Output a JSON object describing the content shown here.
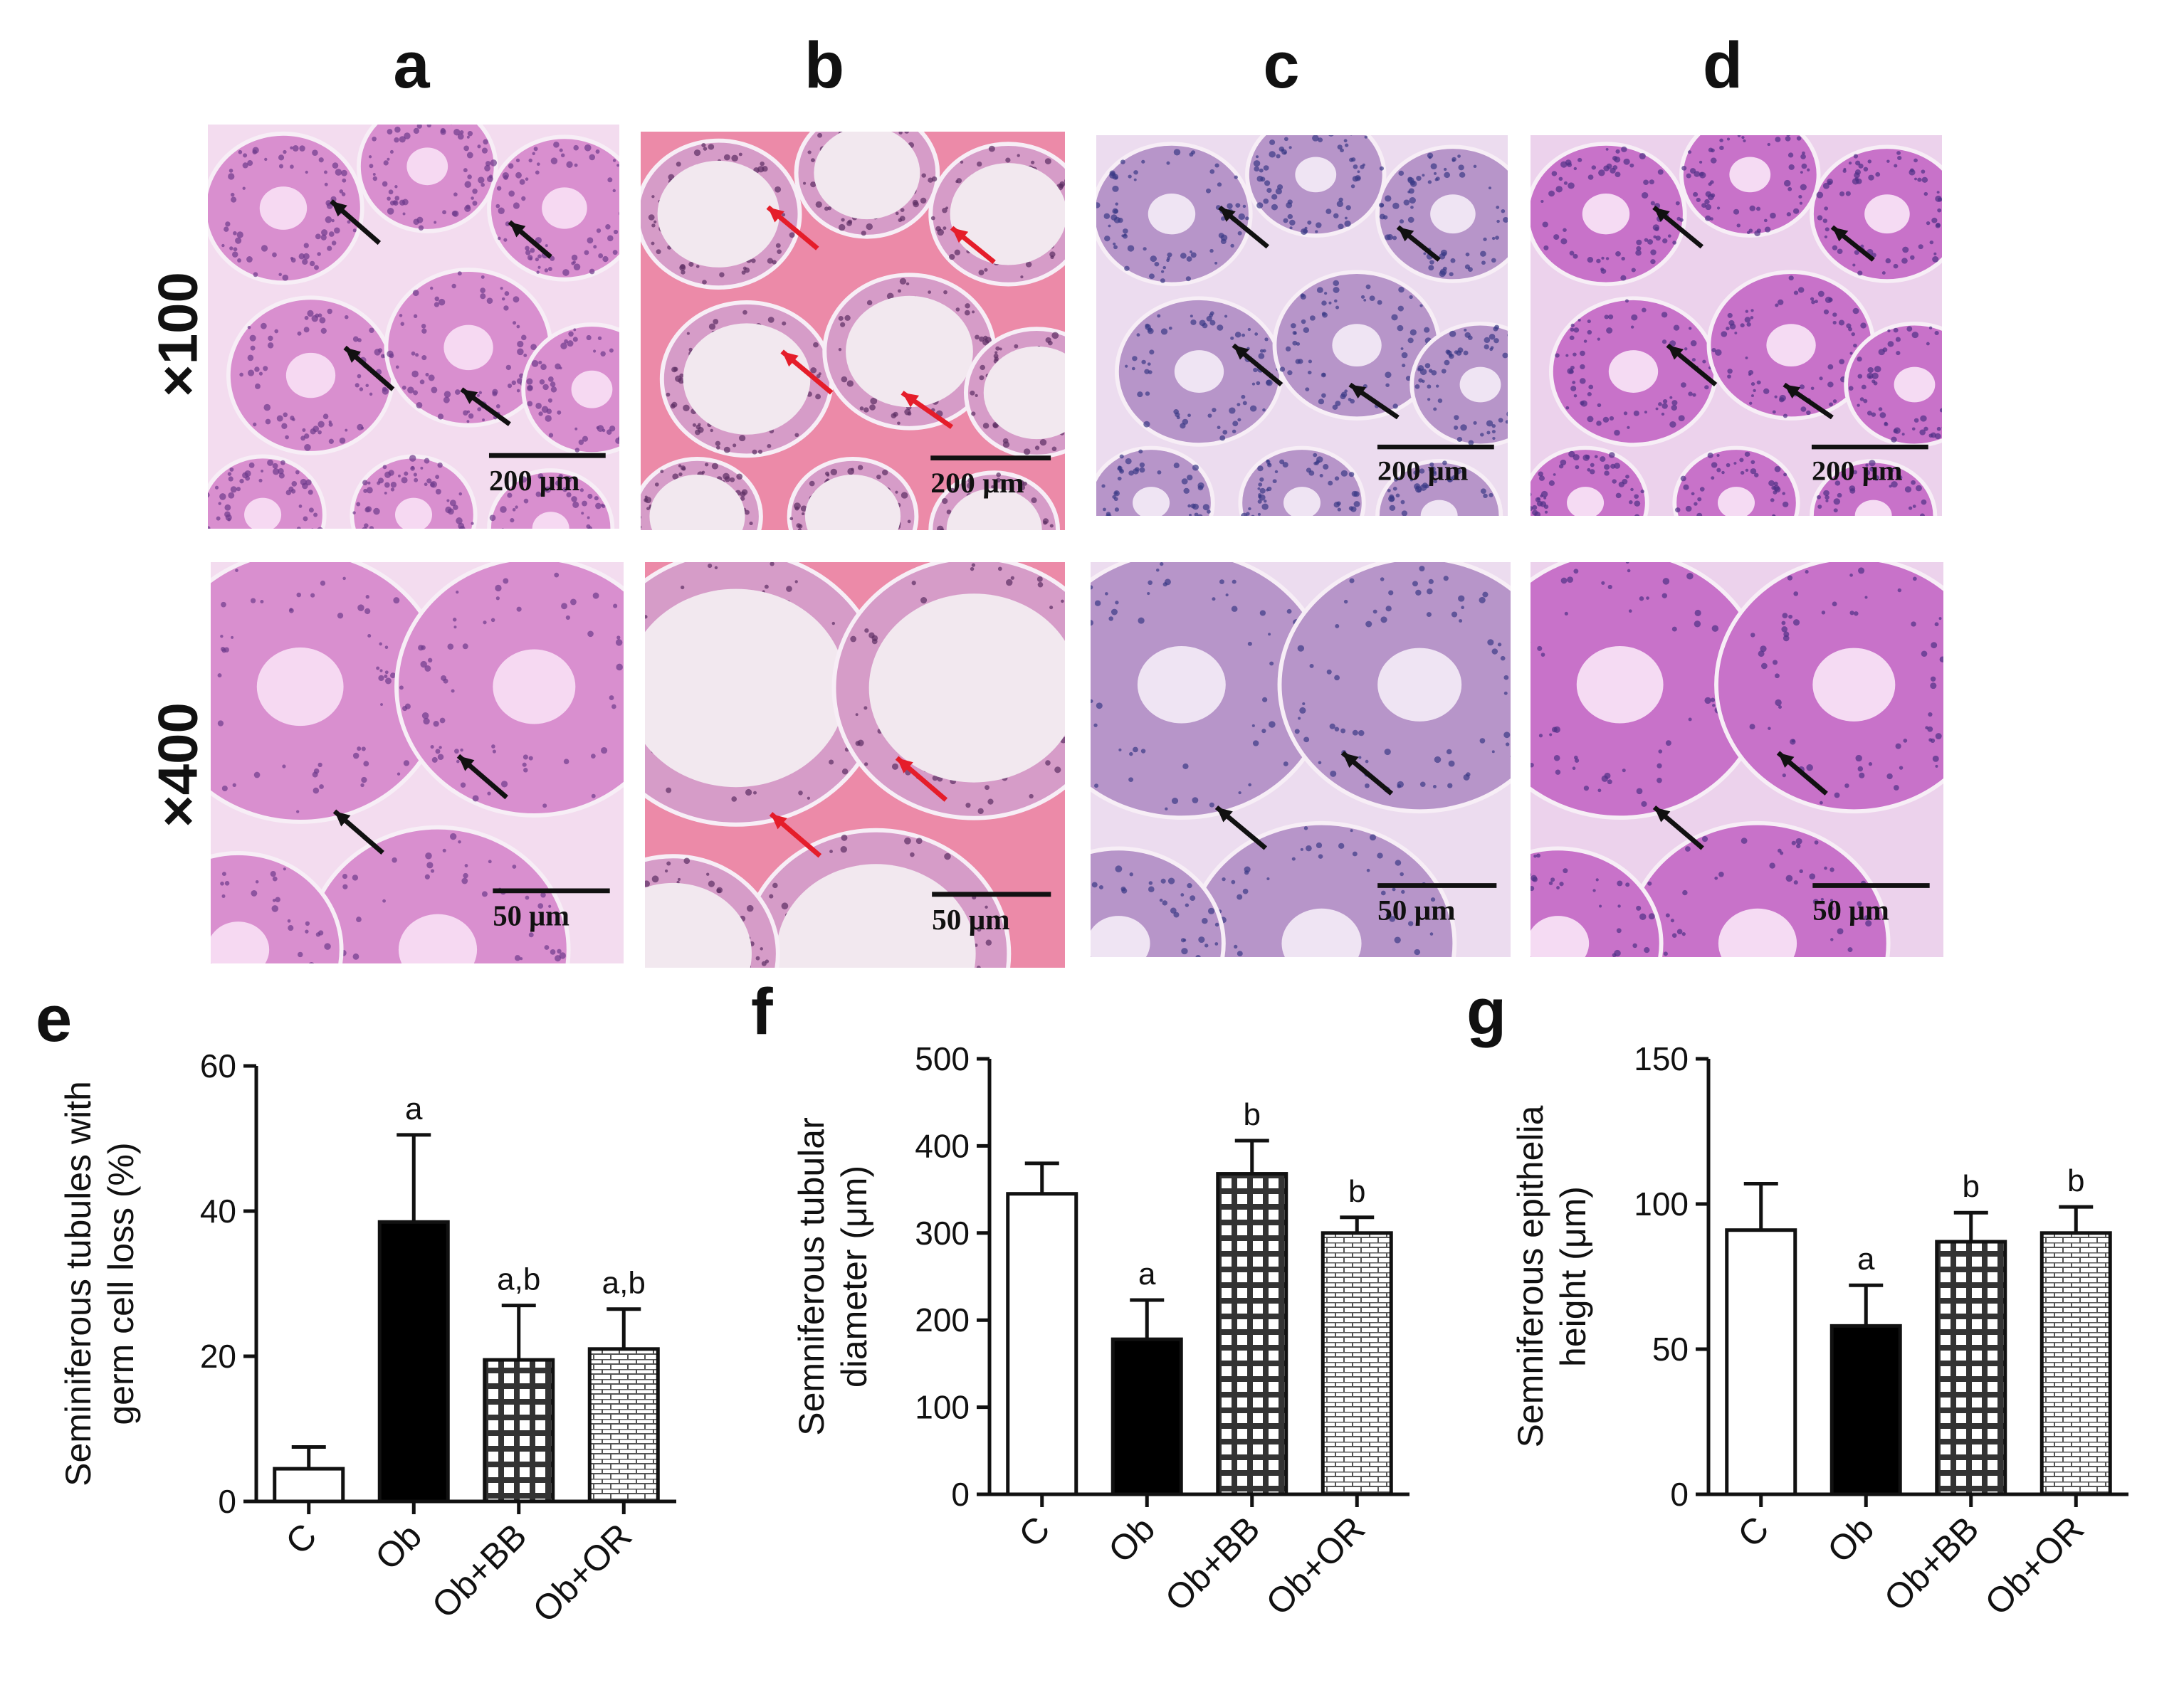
{
  "columns": [
    {
      "letter": "a",
      "arrow_color": "#111111",
      "tissue": "#d98fcf",
      "lumen": "#f6d9f2",
      "bg": "#f3dcef",
      "nuclei": "#6d3b8c"
    },
    {
      "letter": "b",
      "arrow_color": "#e51d2a",
      "tissue": "#d69cc8",
      "lumen": "#f2e8ef",
      "bg": "#ec8aa8",
      "nuclei": "#5b2d63"
    },
    {
      "letter": "c",
      "arrow_color": "#111111",
      "tissue": "#b795c9",
      "lumen": "#efe4f3",
      "bg": "#ecdcef",
      "nuclei": "#3b3a86"
    },
    {
      "letter": "d",
      "arrow_color": "#111111",
      "tissue": "#c872c9",
      "lumen": "#f5dbf3",
      "bg": "#ecd2ec",
      "nuclei": "#4f3086"
    }
  ],
  "rows": [
    {
      "label": "×100",
      "scale": "200 μm"
    },
    {
      "label": "×400",
      "scale": "50 μm"
    }
  ],
  "chart_data": [
    {
      "panel": "e",
      "type": "bar",
      "categories": [
        "C",
        "Ob",
        "Ob+BB",
        "Ob+OR"
      ],
      "values": [
        4.5,
        38.5,
        19.5,
        21
      ],
      "errors": [
        3,
        12,
        7.5,
        5.5
      ],
      "annotations": [
        "",
        "a",
        "a,b",
        "a,b"
      ],
      "ylabel": [
        "Seminiferous tubules with",
        "germ cell loss (%)"
      ],
      "ylim": [
        0,
        60
      ],
      "yticks": [
        0,
        20,
        40,
        60
      ],
      "fills": [
        "white",
        "black",
        "grid",
        "brick"
      ]
    },
    {
      "panel": "f",
      "type": "bar",
      "categories": [
        "C",
        "Ob",
        "Ob+BB",
        "Ob+OR"
      ],
      "values": [
        345,
        178,
        368,
        300
      ],
      "errors": [
        35,
        45,
        38,
        18
      ],
      "annotations": [
        "",
        "a",
        "b",
        "b"
      ],
      "ylabel": [
        "Semniferous tubular",
        "diameter (μm)"
      ],
      "ylim": [
        0,
        500
      ],
      "yticks": [
        0,
        100,
        200,
        300,
        400,
        500
      ],
      "fills": [
        "white",
        "black",
        "grid",
        "brick"
      ]
    },
    {
      "panel": "g",
      "type": "bar",
      "categories": [
        "C",
        "Ob",
        "Ob+BB",
        "Ob+OR"
      ],
      "values": [
        91,
        58,
        87,
        90
      ],
      "errors": [
        16,
        14,
        10,
        9
      ],
      "annotations": [
        "",
        "a",
        "b",
        "b"
      ],
      "ylabel": [
        "Semniferous epithelia",
        "height (μm)"
      ],
      "ylim": [
        0,
        150
      ],
      "yticks": [
        0,
        50,
        100,
        150
      ],
      "fills": [
        "white",
        "black",
        "grid",
        "brick"
      ]
    }
  ]
}
